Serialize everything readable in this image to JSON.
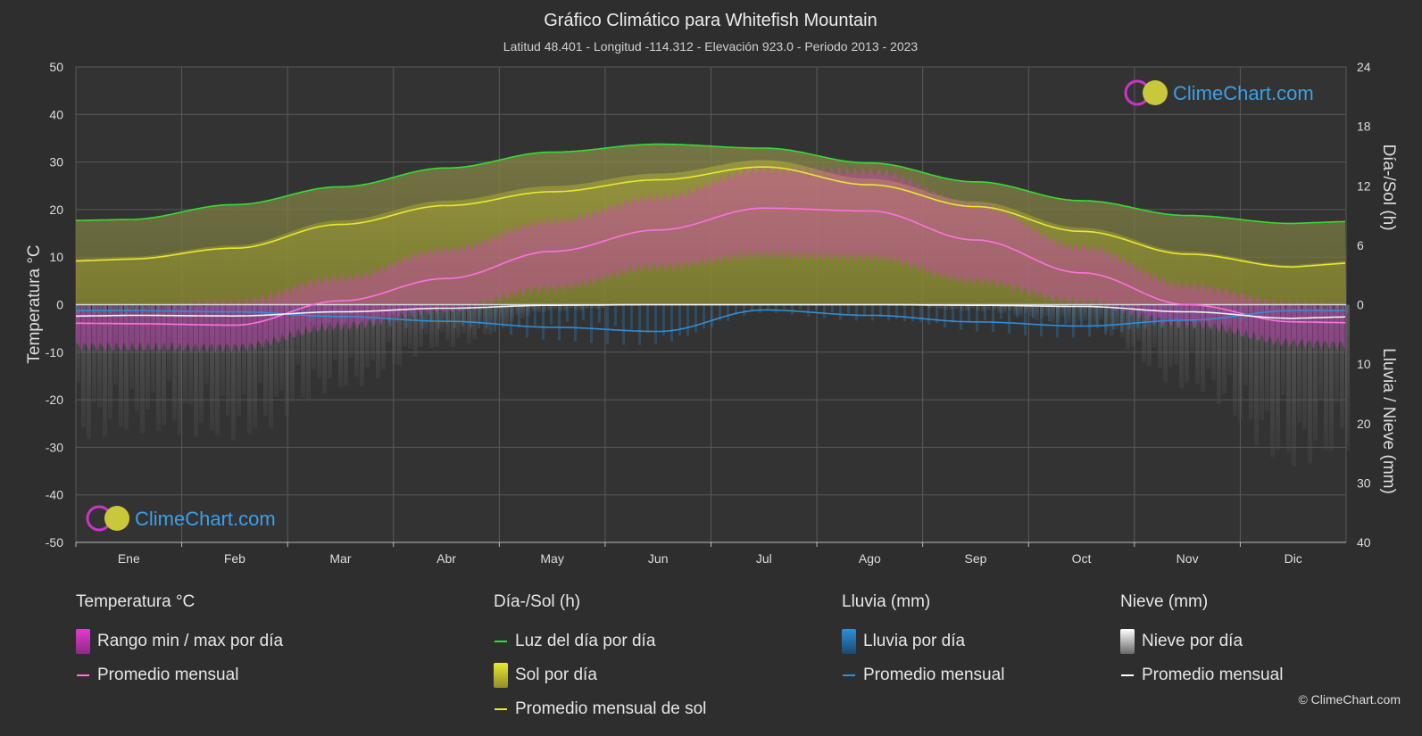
{
  "header": {
    "title": "Gráfico Climático para Whitefish Mountain",
    "subtitle": "Latitud 48.401 - Longitud -114.312 - Elevación 923.0 - Periodo 2013 - 2023"
  },
  "logo_text": "ClimeChart.com",
  "copyright": "© ClimeChart.com",
  "legend": {
    "temperature": {
      "title": "Temperatura °C",
      "range_label": "Rango min / max por día",
      "avg_label": "Promedio mensual"
    },
    "sun": {
      "title": "Día-/Sol (h)",
      "daylight_label": "Luz del día por día",
      "sunshine_label": "Sol por día",
      "avg_label": "Promedio mensual de sol"
    },
    "rain": {
      "title": "Lluvia (mm)",
      "daily_label": "Lluvia por día",
      "avg_label": "Promedio mensual"
    },
    "snow": {
      "title": "Nieve (mm)",
      "daily_label": "Nieve por día",
      "avg_label": "Promedio mensual"
    }
  },
  "colors": {
    "background": "#2e2e2e",
    "grid": "#5a5a5a",
    "daylight": "#33dd33",
    "sunshine_avg": "#e8e830",
    "sunshine_fill": "#a8a830",
    "temp_avg": "#ff70e0",
    "temp_range": "#e23ad0",
    "rain": "#2f8fd8",
    "snow": "#cfcfcf"
  },
  "chart_data": {
    "type": "line",
    "categories": [
      "Ene",
      "Feb",
      "Mar",
      "Abr",
      "May",
      "Jun",
      "Jul",
      "Ago",
      "Sep",
      "Oct",
      "Nov",
      "Dic"
    ],
    "y_left": {
      "label": "Temperatura °C",
      "range": [
        -50,
        50
      ],
      "ticks": [
        50,
        40,
        30,
        20,
        10,
        0,
        -10,
        -20,
        -30,
        -40,
        -50
      ]
    },
    "y_right_top": {
      "label": "Día-/Sol (h)",
      "range": [
        0,
        24
      ],
      "ticks": [
        24,
        18,
        12,
        6,
        0
      ]
    },
    "y_right_bottom": {
      "label": "Lluvia / Nieve (mm)",
      "range": [
        0,
        40
      ],
      "ticks": [
        0,
        10,
        20,
        30,
        40
      ]
    },
    "series": [
      {
        "name": "Luz del día por día",
        "unit": "h",
        "values": [
          8.6,
          10.1,
          11.9,
          13.8,
          15.4,
          16.2,
          15.8,
          14.3,
          12.4,
          10.5,
          9.0,
          8.2
        ]
      },
      {
        "name": "Promedio mensual de sol",
        "unit": "h",
        "values": [
          4.6,
          5.7,
          8.1,
          10.0,
          11.4,
          12.6,
          13.9,
          12.1,
          9.9,
          7.4,
          5.1,
          3.8
        ]
      },
      {
        "name": "Promedio mensual (temperatura)",
        "unit": "°C",
        "values": [
          -4.0,
          -4.3,
          0.8,
          5.5,
          11.2,
          15.7,
          20.3,
          19.7,
          13.6,
          6.7,
          0.0,
          -3.6
        ]
      },
      {
        "name": "Promedio mensual (lluvia)",
        "unit": "mm",
        "values": [
          1.0,
          1.2,
          2.0,
          2.8,
          3.8,
          4.5,
          0.9,
          1.8,
          2.9,
          3.6,
          2.6,
          1.0
        ]
      },
      {
        "name": "Promedio mensual (nieve)",
        "unit": "mm",
        "values": [
          1.8,
          1.9,
          1.2,
          0.6,
          0.1,
          0.0,
          0.0,
          0.0,
          0.1,
          0.3,
          1.2,
          2.3
        ]
      }
    ],
    "daily_temp_range": {
      "max": [
        -1.0,
        0.5,
        5.5,
        11.5,
        17.5,
        22.5,
        28.5,
        28.0,
        21.0,
        12.0,
        4.0,
        0.0
      ],
      "min": [
        -9.0,
        -9.0,
        -4.5,
        -1.0,
        3.5,
        8.0,
        10.5,
        10.0,
        5.0,
        0.5,
        -4.0,
        -8.0
      ]
    },
    "grid": true
  }
}
